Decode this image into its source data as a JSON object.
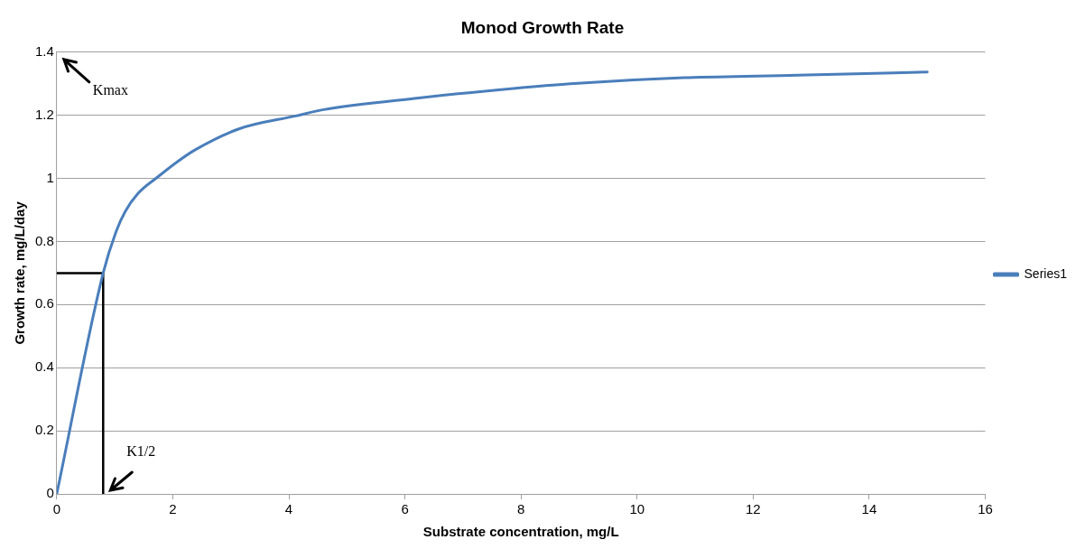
{
  "chart_data": {
    "type": "line",
    "title": "Monod Growth Rate",
    "xlabel": "Substrate concentration, mg/L",
    "ylabel": "Growth rate, mg/L/day",
    "xlim": [
      0,
      16
    ],
    "xticks": [
      0,
      2,
      4,
      6,
      8,
      10,
      12,
      14,
      16
    ],
    "ylim": [
      0,
      1.4
    ],
    "yticks": [
      0,
      0.2,
      0.4,
      0.6,
      0.8,
      1,
      1.2,
      1.4
    ],
    "grid": "y",
    "legend": "right",
    "marker": "none",
    "series": [
      {
        "name": "Series1",
        "color": "#4a7ebb",
        "x": [
          0,
          0.8,
          1.02,
          1.18,
          1.4,
          1.73,
          2.05,
          2.38,
          3.14,
          4.12,
          4.6,
          6.24,
          7.87,
          8.85,
          10.81,
          12.77,
          15
        ],
        "values": [
          0,
          0.7,
          0.83,
          0.895,
          0.952,
          1.003,
          1.049,
          1.09,
          1.157,
          1.198,
          1.218,
          1.255,
          1.285,
          1.3,
          1.319,
          1.327,
          1.337
        ]
      },
      {
        "type": "line",
        "color": "#000000",
        "x": [
          0,
          0.8,
          0.8
        ],
        "values": [
          0.7,
          0.7,
          0
        ]
      }
    ],
    "annotations": [
      "Kmax",
      {
        "text": "K1/2",
        "x": 0.8,
        "y": 0
      }
    ]
  }
}
